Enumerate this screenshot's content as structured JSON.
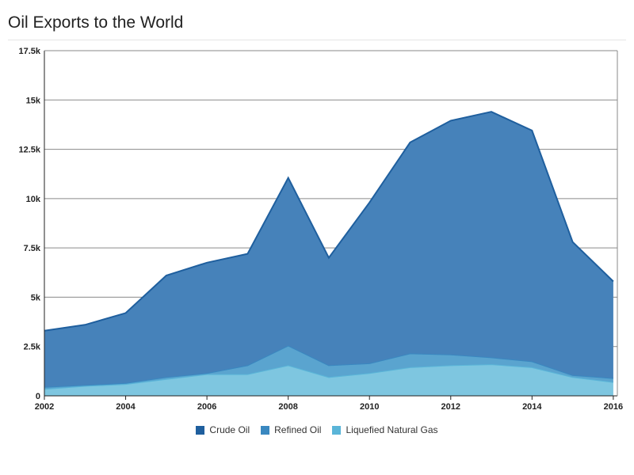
{
  "title": "Oil Exports to the World",
  "chart_data": {
    "type": "area",
    "stacked": true,
    "x": [
      2002,
      2003,
      2004,
      2005,
      2006,
      2007,
      2008,
      2009,
      2010,
      2011,
      2012,
      2013,
      2014,
      2015,
      2016
    ],
    "x_ticks": [
      "2002",
      "2004",
      "2006",
      "2008",
      "2010",
      "2012",
      "2014",
      "2016"
    ],
    "y_ticks": [
      "0",
      "2.5k",
      "5k",
      "7.5k",
      "10k",
      "12.5k",
      "15k",
      "17.5k"
    ],
    "ylim": [
      0,
      17500
    ],
    "xlim": [
      2002,
      2016.1
    ],
    "grid": true,
    "legend_position": "bottom",
    "series": [
      {
        "name": "Crude Oil",
        "color": "#1f5f9e",
        "fill": "#4682ba",
        "values": [
          2850,
          3050,
          3550,
          5150,
          5600,
          5650,
          8500,
          5450,
          8150,
          10700,
          11850,
          12450,
          11700,
          6750,
          4900
        ]
      },
      {
        "name": "Refined Oil",
        "color": "#3a88c0",
        "fill": "#5aa4cf",
        "values": [
          100,
          50,
          50,
          100,
          50,
          450,
          1000,
          600,
          500,
          700,
          550,
          350,
          300,
          100,
          200
        ]
      },
      {
        "name": "Liquefied Natural Gas",
        "color": "#5ab5d8",
        "fill": "#7ec6e0",
        "values": [
          350,
          500,
          600,
          850,
          1100,
          1100,
          1550,
          950,
          1150,
          1450,
          1550,
          1600,
          1450,
          950,
          700
        ]
      }
    ]
  }
}
